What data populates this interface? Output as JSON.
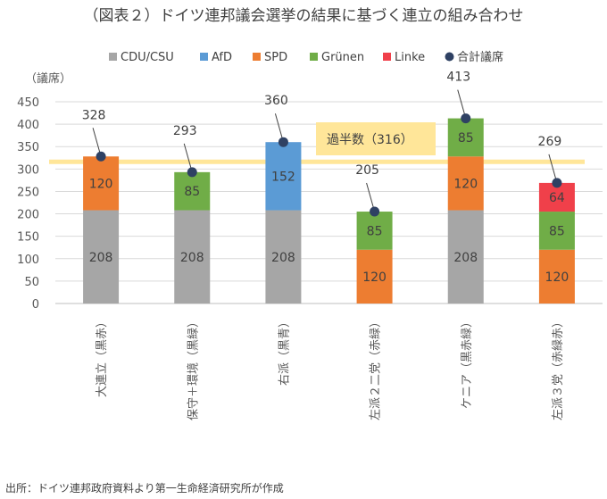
{
  "title": "（図表２）ドイツ連邦議会選挙の結果に基づく連立の組み合わせ",
  "source": "出所：ドイツ連邦政府資料より第一生命経済研究所が作成",
  "colors": {
    "CDU/CSU": "#a6a6a6",
    "AfD": "#5b9bd5",
    "SPD": "#ed7d31",
    "Grünen": "#70ad47",
    "Linke": "#f0404a",
    "total": "#2f4163",
    "threshold": "#ffe699"
  },
  "chart_data": {
    "type": "bar",
    "stacked": true,
    "ylabel": "（議席）",
    "ylim": [
      0,
      450
    ],
    "yticks": [
      0,
      50,
      100,
      150,
      200,
      250,
      300,
      350,
      400,
      450
    ],
    "grid": true,
    "legend_position": "top",
    "categories": [
      "大連立（黒赤）",
      "保守＋環境（黒緑）",
      "右派（黒青）",
      "左派２二党（赤緑）",
      "ケニア（黒赤緑）",
      "左派３党（赤緑赤）"
    ],
    "series": [
      {
        "name": "CDU/CSU",
        "values": [
          208,
          208,
          208,
          0,
          208,
          0
        ]
      },
      {
        "name": "AfD",
        "values": [
          0,
          0,
          152,
          0,
          0,
          0
        ]
      },
      {
        "name": "SPD",
        "values": [
          120,
          0,
          0,
          120,
          120,
          120
        ]
      },
      {
        "name": "Grünen",
        "values": [
          0,
          85,
          0,
          85,
          85,
          85
        ]
      },
      {
        "name": "Linke",
        "values": [
          0,
          0,
          0,
          0,
          0,
          64
        ]
      }
    ],
    "totals": {
      "name": "合計議席",
      "values": [
        328,
        293,
        360,
        205,
        413,
        269
      ]
    },
    "threshold": {
      "label": "過半数（316）",
      "value": 316
    }
  }
}
